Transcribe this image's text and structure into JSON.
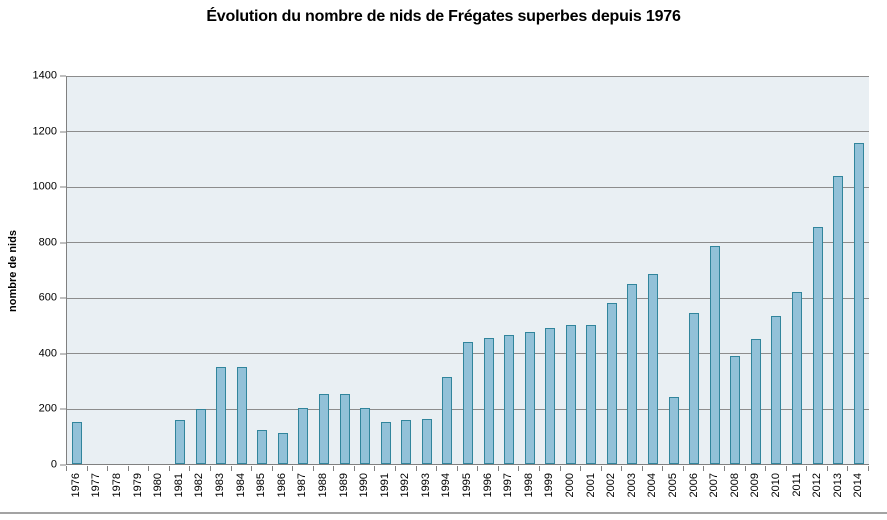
{
  "colors": {
    "bar_fill": "#92c1d8",
    "bar_border": "#31859c",
    "plot_bg": "#e9eff3",
    "gridline": "#8c8c8c",
    "axis": "#808080",
    "separator": "#a3a3a3",
    "text": "#000000"
  },
  "chart_data": {
    "type": "bar",
    "title": "Évolution du nombre de nids de Frégates superbes depuis 1976",
    "xlabel": "",
    "ylabel": "nombre de nids",
    "ylim": [
      0,
      1400
    ],
    "yticks": [
      0,
      200,
      400,
      600,
      800,
      1000,
      1200,
      1400
    ],
    "grid": true,
    "legend": false,
    "categories": [
      "1976",
      "1977",
      "1978",
      "1979",
      "1980",
      "1981",
      "1982",
      "1983",
      "1984",
      "1985",
      "1986",
      "1987",
      "1988",
      "1989",
      "1990",
      "1991",
      "1992",
      "1993",
      "1994",
      "1995",
      "1996",
      "1997",
      "1998",
      "1999",
      "2000",
      "2001",
      "2002",
      "2003",
      "2004",
      "2005",
      "2006",
      "2007",
      "2008",
      "2009",
      "2010",
      "2011",
      "2012",
      "2013",
      "2014"
    ],
    "values": [
      150,
      0,
      0,
      0,
      0,
      160,
      197,
      350,
      350,
      122,
      112,
      203,
      253,
      253,
      203,
      150,
      158,
      163,
      315,
      440,
      455,
      467,
      477,
      490,
      500,
      502,
      580,
      650,
      686,
      242,
      546,
      788,
      390,
      452,
      535,
      620,
      856,
      1038,
      1158
    ]
  }
}
